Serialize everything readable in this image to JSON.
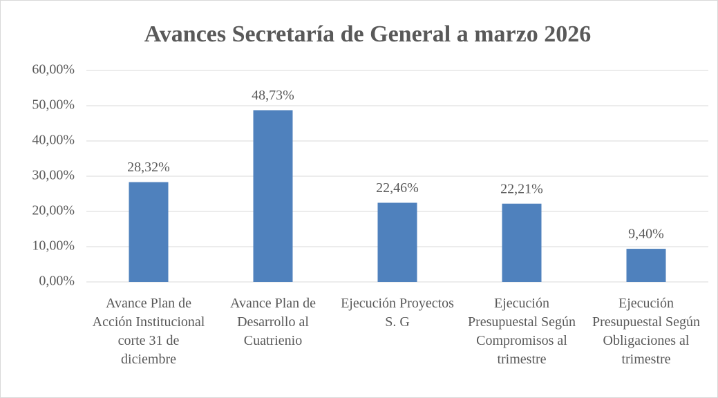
{
  "chart_data": {
    "type": "bar",
    "title": "Avances Secretaría de General a marzo 2026",
    "categories": [
      "Avance Plan de Acción Institucional corte 31 de diciembre",
      "Avance Plan de Desarrollo al Cuatrienio",
      "Ejecución Proyectos S. G",
      "Ejecución Presupuestal Según Compromisos al trimestre",
      "Ejecución Presupuestal Según Obligaciones al trimestre"
    ],
    "values": [
      28.32,
      48.73,
      22.46,
      22.21,
      9.4
    ],
    "value_labels": [
      "28,32%",
      "48,73%",
      "22,46%",
      "22,21%",
      "9,40%"
    ],
    "color": "#4f81bd",
    "ylim": [
      0,
      60
    ],
    "yticks": [
      {
        "value": 0,
        "label": "0,00%"
      },
      {
        "value": 10,
        "label": "10,00%"
      },
      {
        "value": 20,
        "label": "20,00%"
      },
      {
        "value": 30,
        "label": "30,00%"
      },
      {
        "value": 40,
        "label": "40,00%"
      },
      {
        "value": 50,
        "label": "50,00%"
      },
      {
        "value": 60,
        "label": "60,00%"
      }
    ],
    "grid": true
  }
}
